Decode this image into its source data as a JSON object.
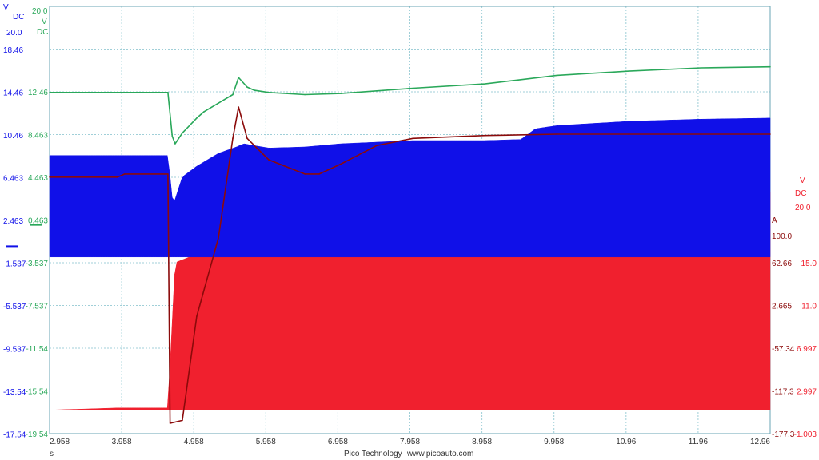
{
  "footer": {
    "brand": "Pico Technology",
    "url": "www.picoauto.com"
  },
  "x_unit": "s",
  "colors": {
    "blue": "#1010e8",
    "green": "#2aa85a",
    "darkred": "#8b0a0a",
    "red": "#f0202e",
    "grid": "#a0cfd8"
  },
  "chart_data": {
    "type": "line",
    "title": "",
    "grid": true,
    "xlim": [
      2.958,
      12.96
    ],
    "x_ticks": [
      "2.958",
      "3.958",
      "4.958",
      "5.958",
      "6.958",
      "7.958",
      "8.958",
      "9.958",
      "10.96",
      "11.96",
      "12.96"
    ],
    "axes": {
      "blue": {
        "unit": "V",
        "coupling": "DC",
        "top": "20.0",
        "ticks": [
          "18.46",
          "14.46",
          "10.46",
          "6.463",
          "2.463",
          "-1.537",
          "-5.537",
          "-9.537",
          "-13.54",
          "-17.54"
        ]
      },
      "green": {
        "unit": "V",
        "coupling": "DC",
        "top": "20.0",
        "ticks": [
          "12.46",
          "8.463",
          "4.463",
          "0.463",
          "-3.537",
          "-7.537",
          "-11.54",
          "-15.54",
          "-19.54"
        ]
      },
      "darkred": {
        "unit": "A",
        "top": "100.0",
        "ticks": [
          "62.66",
          "2.665",
          "-57.34",
          "-117.3",
          "-177.3"
        ]
      },
      "red": {
        "unit": "V",
        "coupling": "DC",
        "top": "20.0",
        "ticks": [
          "15.0",
          "11.0",
          "6.997",
          "2.997",
          "-1.003"
        ]
      }
    },
    "series": [
      {
        "axis": "green",
        "color": "#2aa85a",
        "x": [
          2.958,
          4.6,
          4.66,
          4.7,
          4.8,
          5.0,
          5.1,
          5.3,
          5.5,
          5.58,
          5.7,
          5.8,
          6.0,
          6.5,
          7.0,
          8.0,
          9.0,
          9.5,
          10.0,
          11.0,
          12.0,
          12.96
        ],
        "y": [
          12.4,
          12.4,
          8.3,
          7.6,
          8.6,
          10.0,
          10.6,
          11.4,
          12.2,
          13.8,
          12.9,
          12.6,
          12.4,
          12.2,
          12.3,
          12.8,
          13.2,
          13.6,
          14.0,
          14.4,
          14.7,
          14.8
        ]
      },
      {
        "axis": "blue",
        "color": "#1010e8",
        "x": [
          2.958,
          4.6,
          4.67,
          4.8,
          5.0,
          5.3,
          5.55,
          5.65,
          6.0,
          6.5,
          7.0,
          8.0,
          9.0,
          9.5,
          9.6,
          9.7,
          10.0,
          11.0,
          12.0,
          12.96
        ],
        "y": [
          8.5,
          8.5,
          3.8,
          6.5,
          7.5,
          8.7,
          9.3,
          9.6,
          9.2,
          9.3,
          9.6,
          9.9,
          9.9,
          10.0,
          10.5,
          11.0,
          11.3,
          11.7,
          11.9,
          12.0
        ],
        "min_level": -1.0
      },
      {
        "axis": "darkred",
        "color": "#8b0a0a",
        "x": [
          2.958,
          3.9,
          4.0,
          4.6,
          4.63,
          4.8,
          5.0,
          5.3,
          5.5,
          5.58,
          5.7,
          6.0,
          6.5,
          6.7,
          7.0,
          7.5,
          8.0,
          9.0,
          10.0,
          11.0,
          12.0,
          12.96
        ],
        "y": [
          2.8,
          2.8,
          5.0,
          5.0,
          -170.0,
          -168.0,
          -95.0,
          -40.0,
          30.0,
          52.0,
          30.0,
          15.0,
          5.0,
          5.0,
          12.0,
          25.0,
          30.0,
          32.0,
          33.0,
          33.0,
          33.0,
          33.0
        ]
      },
      {
        "axis": "red",
        "color": "#f0202e",
        "x": [
          2.958,
          3.9,
          4.6,
          4.7,
          5.0,
          5.3,
          5.5,
          5.6,
          6.0,
          7.0,
          8.0,
          9.0,
          10.0,
          11.0,
          12.0,
          12.96
        ],
        "y": [
          0.1,
          0.2,
          0.2,
          7.0,
          7.4,
          8.0,
          8.4,
          8.6,
          8.6,
          8.8,
          9.0,
          9.3,
          9.6,
          9.9,
          10.1,
          10.3
        ],
        "min_level": 0.1
      }
    ]
  }
}
